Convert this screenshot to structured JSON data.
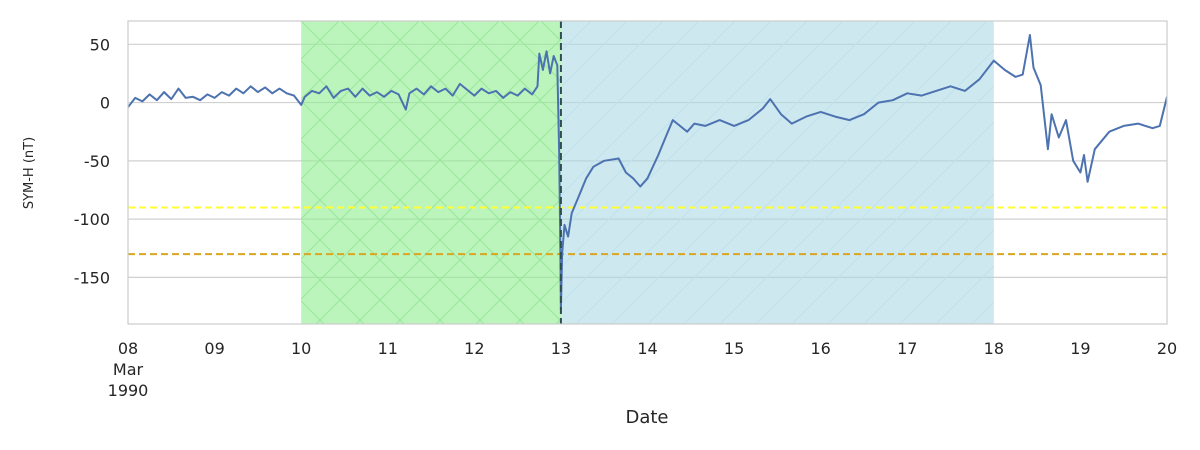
{
  "chart_data": {
    "type": "line",
    "title": "",
    "xlabel": "Date",
    "ylabel": "SYM-H (nT)",
    "ylim": [
      -190,
      70
    ],
    "yticks": [
      50,
      0,
      -50,
      -100,
      -150
    ],
    "xlim": [
      "1990-03-08",
      "1990-03-20"
    ],
    "xticks": [
      {
        "date": "1990-03-08",
        "label": [
          "08",
          "Mar",
          "1990"
        ]
      },
      {
        "date": "1990-03-09",
        "label": [
          "09"
        ]
      },
      {
        "date": "1990-03-10",
        "label": [
          "10"
        ]
      },
      {
        "date": "1990-03-11",
        "label": [
          "11"
        ]
      },
      {
        "date": "1990-03-12",
        "label": [
          "12"
        ]
      },
      {
        "date": "1990-03-13",
        "label": [
          "13"
        ]
      },
      {
        "date": "1990-03-14",
        "label": [
          "14"
        ]
      },
      {
        "date": "1990-03-15",
        "label": [
          "15"
        ]
      },
      {
        "date": "1990-03-16",
        "label": [
          "16"
        ]
      },
      {
        "date": "1990-03-17",
        "label": [
          "17"
        ]
      },
      {
        "date": "1990-03-18",
        "label": [
          "18"
        ]
      },
      {
        "date": "1990-03-19",
        "label": [
          "19"
        ]
      },
      {
        "date": "1990-03-20",
        "label": [
          "20"
        ]
      }
    ],
    "grid": true,
    "legend": "none",
    "shaded_regions": [
      {
        "start": "1990-03-10",
        "end": "1990-03-13",
        "color": "#90ee90",
        "hatch": "cross"
      },
      {
        "start": "1990-03-13",
        "end": "1990-03-18",
        "color": "#add8e6",
        "hatch": "diagonal"
      }
    ],
    "vlines": [
      {
        "date": "1990-03-13",
        "color": "#2f4f4f",
        "style": "dashed"
      }
    ],
    "hlines": [
      {
        "y": -90,
        "color": "#ffff33",
        "style": "dashed"
      },
      {
        "y": -130,
        "color": "#daa520",
        "style": "dashed"
      }
    ],
    "series": [
      {
        "color": "#4c72b0",
        "points": [
          [
            "1990-03-08T00:00",
            -4
          ],
          [
            "1990-03-08T02:00",
            4
          ],
          [
            "1990-03-08T04:00",
            1
          ],
          [
            "1990-03-08T06:00",
            7
          ],
          [
            "1990-03-08T08:00",
            2
          ],
          [
            "1990-03-08T10:00",
            9
          ],
          [
            "1990-03-08T12:00",
            3
          ],
          [
            "1990-03-08T14:00",
            12
          ],
          [
            "1990-03-08T16:00",
            4
          ],
          [
            "1990-03-08T18:00",
            5
          ],
          [
            "1990-03-08T20:00",
            2
          ],
          [
            "1990-03-08T22:00",
            7
          ],
          [
            "1990-03-09T00:00",
            4
          ],
          [
            "1990-03-09T02:00",
            9
          ],
          [
            "1990-03-09T04:00",
            6
          ],
          [
            "1990-03-09T06:00",
            12
          ],
          [
            "1990-03-09T08:00",
            8
          ],
          [
            "1990-03-09T10:00",
            14
          ],
          [
            "1990-03-09T12:00",
            9
          ],
          [
            "1990-03-09T14:00",
            13
          ],
          [
            "1990-03-09T16:00",
            8
          ],
          [
            "1990-03-09T18:00",
            12
          ],
          [
            "1990-03-09T20:00",
            8
          ],
          [
            "1990-03-09T22:00",
            6
          ],
          [
            "1990-03-10T00:00",
            -2
          ],
          [
            "1990-03-10T01:00",
            5
          ],
          [
            "1990-03-10T03:00",
            10
          ],
          [
            "1990-03-10T05:00",
            8
          ],
          [
            "1990-03-10T07:00",
            14
          ],
          [
            "1990-03-10T09:00",
            4
          ],
          [
            "1990-03-10T11:00",
            10
          ],
          [
            "1990-03-10T13:00",
            12
          ],
          [
            "1990-03-10T15:00",
            5
          ],
          [
            "1990-03-10T17:00",
            12
          ],
          [
            "1990-03-10T19:00",
            6
          ],
          [
            "1990-03-10T21:00",
            9
          ],
          [
            "1990-03-10T23:00",
            5
          ],
          [
            "1990-03-11T01:00",
            10
          ],
          [
            "1990-03-11T03:00",
            7
          ],
          [
            "1990-03-11T05:00",
            -6
          ],
          [
            "1990-03-11T06:00",
            8
          ],
          [
            "1990-03-11T08:00",
            12
          ],
          [
            "1990-03-11T10:00",
            7
          ],
          [
            "1990-03-11T12:00",
            14
          ],
          [
            "1990-03-11T14:00",
            9
          ],
          [
            "1990-03-11T16:00",
            12
          ],
          [
            "1990-03-11T18:00",
            6
          ],
          [
            "1990-03-11T20:00",
            16
          ],
          [
            "1990-03-12T00:00",
            6
          ],
          [
            "1990-03-12T02:00",
            12
          ],
          [
            "1990-03-12T04:00",
            8
          ],
          [
            "1990-03-12T06:00",
            10
          ],
          [
            "1990-03-12T08:00",
            4
          ],
          [
            "1990-03-12T10:00",
            9
          ],
          [
            "1990-03-12T12:00",
            6
          ],
          [
            "1990-03-12T14:00",
            12
          ],
          [
            "1990-03-12T16:00",
            7
          ],
          [
            "1990-03-12T17:30",
            14
          ],
          [
            "1990-03-12T18:00",
            42
          ],
          [
            "1990-03-12T19:00",
            28
          ],
          [
            "1990-03-12T20:00",
            44
          ],
          [
            "1990-03-12T21:00",
            25
          ],
          [
            "1990-03-12T22:00",
            40
          ],
          [
            "1990-03-12T23:00",
            32
          ],
          [
            "1990-03-12T23:30",
            -40
          ],
          [
            "1990-03-12T23:45",
            -100
          ],
          [
            "1990-03-12T23:55",
            -150
          ],
          [
            "1990-03-13T00:00",
            -178
          ],
          [
            "1990-03-13T00:20",
            -130
          ],
          [
            "1990-03-13T01:00",
            -105
          ],
          [
            "1990-03-13T02:00",
            -115
          ],
          [
            "1990-03-13T03:00",
            -95
          ],
          [
            "1990-03-13T05:00",
            -80
          ],
          [
            "1990-03-13T07:00",
            -65
          ],
          [
            "1990-03-13T09:00",
            -55
          ],
          [
            "1990-03-13T12:00",
            -50
          ],
          [
            "1990-03-13T16:00",
            -48
          ],
          [
            "1990-03-13T18:00",
            -60
          ],
          [
            "1990-03-13T20:00",
            -65
          ],
          [
            "1990-03-13T22:00",
            -72
          ],
          [
            "1990-03-14T00:00",
            -65
          ],
          [
            "1990-03-14T03:00",
            -45
          ],
          [
            "1990-03-14T05:00",
            -30
          ],
          [
            "1990-03-14T07:00",
            -15
          ],
          [
            "1990-03-14T09:00",
            -20
          ],
          [
            "1990-03-14T11:00",
            -25
          ],
          [
            "1990-03-14T13:00",
            -18
          ],
          [
            "1990-03-14T16:00",
            -20
          ],
          [
            "1990-03-14T20:00",
            -15
          ],
          [
            "1990-03-15T00:00",
            -20
          ],
          [
            "1990-03-15T04:00",
            -15
          ],
          [
            "1990-03-15T08:00",
            -5
          ],
          [
            "1990-03-15T10:00",
            3
          ],
          [
            "1990-03-15T13:00",
            -10
          ],
          [
            "1990-03-15T16:00",
            -18
          ],
          [
            "1990-03-15T20:00",
            -12
          ],
          [
            "1990-03-16T00:00",
            -8
          ],
          [
            "1990-03-16T04:00",
            -12
          ],
          [
            "1990-03-16T08:00",
            -15
          ],
          [
            "1990-03-16T12:00",
            -10
          ],
          [
            "1990-03-16T16:00",
            0
          ],
          [
            "1990-03-16T20:00",
            2
          ],
          [
            "1990-03-17T00:00",
            8
          ],
          [
            "1990-03-17T04:00",
            6
          ],
          [
            "1990-03-17T08:00",
            10
          ],
          [
            "1990-03-17T12:00",
            14
          ],
          [
            "1990-03-17T16:00",
            10
          ],
          [
            "1990-03-17T20:00",
            20
          ],
          [
            "1990-03-18T00:00",
            36
          ],
          [
            "1990-03-18T03:00",
            28
          ],
          [
            "1990-03-18T06:00",
            22
          ],
          [
            "1990-03-18T08:00",
            24
          ],
          [
            "1990-03-18T10:00",
            58
          ],
          [
            "1990-03-18T11:00",
            30
          ],
          [
            "1990-03-18T13:00",
            15
          ],
          [
            "1990-03-18T15:00",
            -40
          ],
          [
            "1990-03-18T16:00",
            -10
          ],
          [
            "1990-03-18T18:00",
            -30
          ],
          [
            "1990-03-18T20:00",
            -15
          ],
          [
            "1990-03-18T22:00",
            -50
          ],
          [
            "1990-03-19T00:00",
            -60
          ],
          [
            "1990-03-19T01:00",
            -45
          ],
          [
            "1990-03-19T02:00",
            -68
          ],
          [
            "1990-03-19T04:00",
            -40
          ],
          [
            "1990-03-19T08:00",
            -25
          ],
          [
            "1990-03-19T12:00",
            -20
          ],
          [
            "1990-03-19T16:00",
            -18
          ],
          [
            "1990-03-19T20:00",
            -22
          ],
          [
            "1990-03-19T22:00",
            -20
          ],
          [
            "1990-03-20T00:00",
            5
          ]
        ]
      }
    ]
  }
}
